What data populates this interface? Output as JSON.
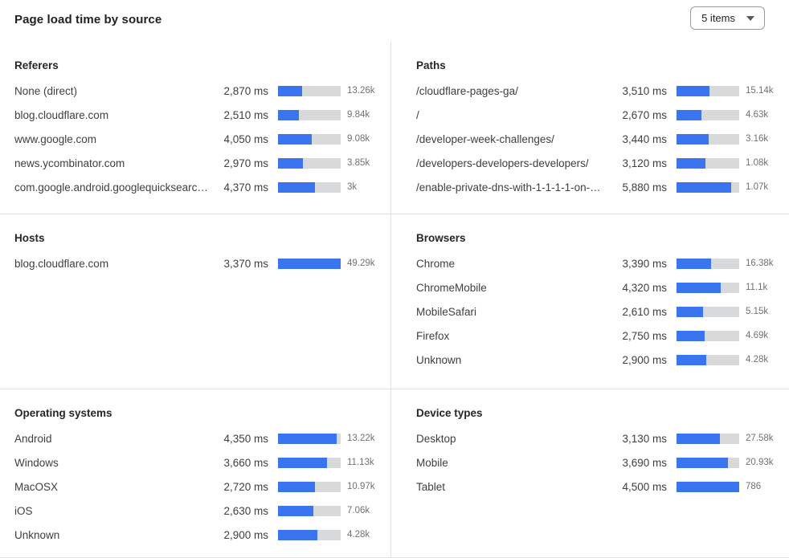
{
  "header": {
    "title": "Page load time by source",
    "items_dropdown": {
      "value": "5 items",
      "icon": "caret-down"
    }
  },
  "colors": {
    "bar_fill": "#3b74ef",
    "bar_track": "#d8d9db",
    "divider": "#e0e0e0"
  },
  "chart_data": [
    {
      "type": "bar",
      "title": "Referers",
      "unit": "ms",
      "legend": "off",
      "grid": "off",
      "bar_scale_max_ms": 7480,
      "rows": [
        {
          "label": "None (direct)",
          "ms": 2870,
          "ms_display": "2,870 ms",
          "count": "13.26k"
        },
        {
          "label": "blog.cloudflare.com",
          "ms": 2510,
          "ms_display": "2,510 ms",
          "count": "9.84k"
        },
        {
          "label": "www.google.com",
          "ms": 4050,
          "ms_display": "4,050 ms",
          "count": "9.08k"
        },
        {
          "label": "news.ycombinator.com",
          "ms": 2970,
          "ms_display": "2,970 ms",
          "count": "3.85k"
        },
        {
          "label": "com.google.android.googlequicksearc…",
          "ms": 4370,
          "ms_display": "4,370 ms",
          "count": "3k"
        }
      ]
    },
    {
      "type": "bar",
      "title": "Paths",
      "unit": "ms",
      "legend": "off",
      "grid": "off",
      "bar_scale_max_ms": 6700,
      "rows": [
        {
          "label": "/cloudflare-pages-ga/",
          "ms": 3510,
          "ms_display": "3,510 ms",
          "count": "15.14k"
        },
        {
          "label": "/",
          "ms": 2670,
          "ms_display": "2,670 ms",
          "count": "4.63k"
        },
        {
          "label": "/developer-week-challenges/",
          "ms": 3440,
          "ms_display": "3,440 ms",
          "count": "3.16k"
        },
        {
          "label": "/developers-developers-developers/",
          "ms": 3120,
          "ms_display": "3,120 ms",
          "count": "1.08k"
        },
        {
          "label": "/enable-private-dns-with-1-1-1-1-on-…",
          "ms": 5880,
          "ms_display": "5,880 ms",
          "count": "1.07k"
        }
      ]
    },
    {
      "type": "bar",
      "title": "Hosts",
      "unit": "ms",
      "legend": "off",
      "grid": "off",
      "bar_scale_max_ms": 3370,
      "rows": [
        {
          "label": "blog.cloudflare.com",
          "ms": 3370,
          "ms_display": "3,370 ms",
          "count": "49.29k"
        }
      ]
    },
    {
      "type": "bar",
      "title": "Browsers",
      "unit": "ms",
      "legend": "off",
      "grid": "off",
      "bar_scale_max_ms": 6150,
      "rows": [
        {
          "label": "Chrome",
          "ms": 3390,
          "ms_display": "3,390 ms",
          "count": "16.38k"
        },
        {
          "label": "ChromeMobile",
          "ms": 4320,
          "ms_display": "4,320 ms",
          "count": "11.1k"
        },
        {
          "label": "MobileSafari",
          "ms": 2610,
          "ms_display": "2,610 ms",
          "count": "5.15k"
        },
        {
          "label": "Firefox",
          "ms": 2750,
          "ms_display": "2,750 ms",
          "count": "4.69k"
        },
        {
          "label": "Unknown",
          "ms": 2900,
          "ms_display": "2,900 ms",
          "count": "4.28k"
        }
      ]
    },
    {
      "type": "bar",
      "title": "Operating systems",
      "unit": "ms",
      "legend": "off",
      "grid": "off",
      "bar_scale_max_ms": 4650,
      "rows": [
        {
          "label": "Android",
          "ms": 4350,
          "ms_display": "4,350 ms",
          "count": "13.22k"
        },
        {
          "label": "Windows",
          "ms": 3660,
          "ms_display": "3,660 ms",
          "count": "11.13k"
        },
        {
          "label": "MacOSX",
          "ms": 2720,
          "ms_display": "2,720 ms",
          "count": "10.97k"
        },
        {
          "label": "iOS",
          "ms": 2630,
          "ms_display": "2,630 ms",
          "count": "7.06k"
        },
        {
          "label": "Unknown",
          "ms": 2900,
          "ms_display": "2,900 ms",
          "count": "4.28k"
        }
      ]
    },
    {
      "type": "bar",
      "title": "Device types",
      "unit": "ms",
      "legend": "off",
      "grid": "off",
      "bar_scale_max_ms": 4500,
      "rows": [
        {
          "label": "Desktop",
          "ms": 3130,
          "ms_display": "3,130 ms",
          "count": "27.58k"
        },
        {
          "label": "Mobile",
          "ms": 3690,
          "ms_display": "3,690 ms",
          "count": "20.93k"
        },
        {
          "label": "Tablet",
          "ms": 4500,
          "ms_display": "4,500 ms",
          "count": "786"
        }
      ]
    }
  ]
}
